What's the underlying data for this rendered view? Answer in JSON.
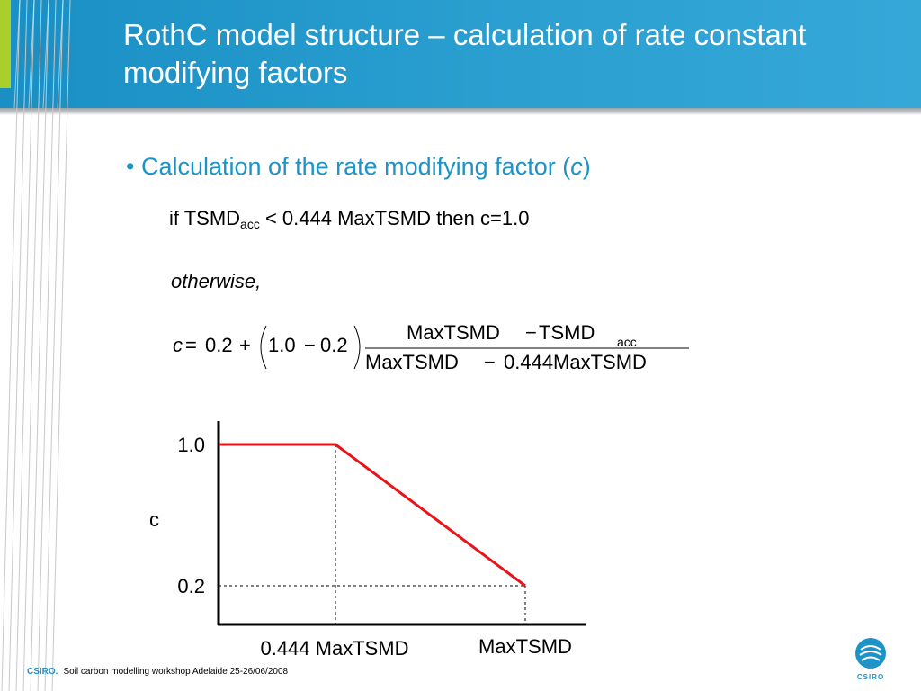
{
  "slide": {
    "title": "RothC model structure – calculation of rate constant modifying factors",
    "bullet_marker": "•",
    "bullet_text": "Calculation of the rate modifying factor (",
    "bullet_var": "c",
    "bullet_close": ")",
    "rule": {
      "prefix": "if TSMD",
      "sub": "acc",
      "suffix": " < 0.444 MaxTSMD then c=1.0"
    },
    "otherwise": "otherwise,",
    "formula": {
      "lhs": "c",
      "eq": "=",
      "term1": "0.2",
      "plus": "+",
      "paren_inner": "1.0",
      "minus1": "−",
      "inner2": "0.2",
      "numerator_a": "MaxTSMD",
      "numerator_minus": "−",
      "numerator_b": "TSMD",
      "numerator_sub": "acc",
      "denominator_a": "MaxTSMD",
      "denominator_minus": "−",
      "denominator_b": "0.444MaxTSMD"
    },
    "footer": {
      "brand": "CSIRO.",
      "text": "Soil carbon modelling workshop Adelaide 25-26/06/2008"
    },
    "logo_text": "CSIRO"
  },
  "chart_data": {
    "type": "line",
    "x": [
      "0",
      "0.444 MaxTSMD",
      "MaxTSMD"
    ],
    "series": [
      {
        "values": [
          1.0,
          1.0,
          0.2
        ],
        "color": "#e8141a"
      }
    ],
    "ytick_labels": [
      "1.0",
      "0.2"
    ],
    "ylabel": "c",
    "xtick_labels": [
      "0.444 MaxTSMD",
      "MaxTSMD"
    ],
    "ylim": [
      0.0,
      1.0
    ],
    "grid": false,
    "reference_lines": "dashed"
  }
}
